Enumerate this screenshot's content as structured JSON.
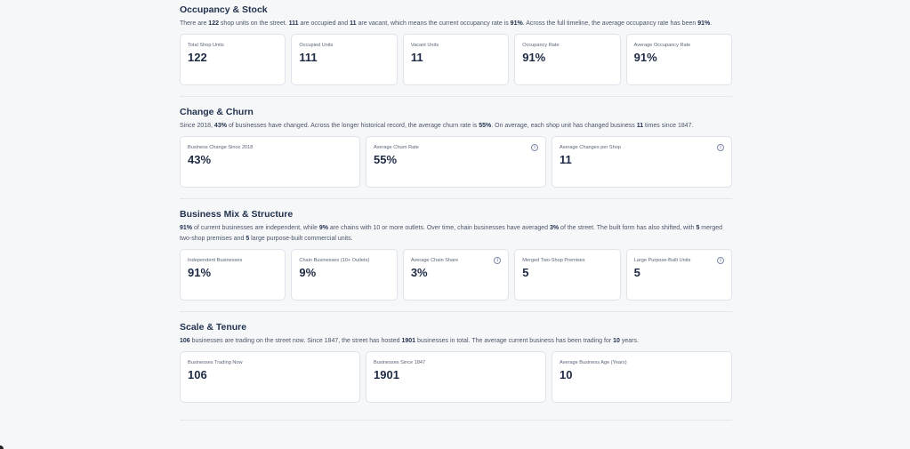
{
  "sections": [
    {
      "title": "Occupancy & Stock",
      "desc": [
        {
          "t": "There are "
        },
        {
          "t": "122",
          "b": true
        },
        {
          "t": " shop units on the street. "
        },
        {
          "t": "111",
          "b": true
        },
        {
          "t": " are occupied and "
        },
        {
          "t": "11",
          "b": true
        },
        {
          "t": " are vacant, which means the current occupancy rate is "
        },
        {
          "t": "91%",
          "b": true
        },
        {
          "t": ". Across the full timeline, the average occupancy rate has been "
        },
        {
          "t": "91%",
          "b": true
        },
        {
          "t": "."
        }
      ],
      "cards": [
        {
          "label": "Total Shop Units",
          "value": "122",
          "info": false
        },
        {
          "label": "Occupied Units",
          "value": "111",
          "info": false
        },
        {
          "label": "Vacant Units",
          "value": "11",
          "info": false
        },
        {
          "label": "Occupancy Rate",
          "value": "91%",
          "info": false
        },
        {
          "label": "Average Occupancy Rate",
          "value": "91%",
          "info": false
        }
      ]
    },
    {
      "title": "Change & Churn",
      "desc": [
        {
          "t": "Since 2018, "
        },
        {
          "t": "43%",
          "b": true
        },
        {
          "t": " of businesses have changed. Across the longer historical record, the average churn rate is "
        },
        {
          "t": "55%",
          "b": true
        },
        {
          "t": ". On average, each shop unit has changed business "
        },
        {
          "t": "11",
          "b": true
        },
        {
          "t": " times since 1847."
        }
      ],
      "cards": [
        {
          "label": "Business Change Since 2018",
          "value": "43%",
          "info": false
        },
        {
          "label": "Average Churn Rate",
          "value": "55%",
          "info": true
        },
        {
          "label": "Average Changes per Shop",
          "value": "11",
          "info": true
        }
      ]
    },
    {
      "title": "Business Mix & Structure",
      "desc": [
        {
          "t": "91%",
          "b": true
        },
        {
          "t": " of current businesses are independent, while "
        },
        {
          "t": "9%",
          "b": true
        },
        {
          "t": " are chains with 10 or more outlets. Over time, chain businesses have averaged "
        },
        {
          "t": "3%",
          "b": true
        },
        {
          "t": " of the street. The built form has also shifted, with "
        },
        {
          "t": "5",
          "b": true
        },
        {
          "t": " merged two-shop premises and "
        },
        {
          "t": "5",
          "b": true
        },
        {
          "t": " large purpose-built commercial units."
        }
      ],
      "cards": [
        {
          "label": "Independent Businesses",
          "value": "91%",
          "info": false
        },
        {
          "label": "Chain Businesses (10+ Outlets)",
          "value": "9%",
          "info": false
        },
        {
          "label": "Average Chain Share",
          "value": "3%",
          "info": true
        },
        {
          "label": "Merged Two-Shop Premises",
          "value": "5",
          "info": false
        },
        {
          "label": "Large Purpose-Built Units",
          "value": "5",
          "info": true
        }
      ]
    },
    {
      "title": "Scale & Tenure",
      "desc": [
        {
          "t": "106",
          "b": true
        },
        {
          "t": " businesses are trading on the street now. Since 1847, the street has hosted "
        },
        {
          "t": "1901",
          "b": true
        },
        {
          "t": " businesses in total. The average current business has been trading for "
        },
        {
          "t": "10",
          "b": true
        },
        {
          "t": " years."
        }
      ],
      "cards": [
        {
          "label": "Businesses Trading Now",
          "value": "106",
          "info": false
        },
        {
          "label": "Businesses Since 1847",
          "value": "1901",
          "info": false
        },
        {
          "label": "Average Business Age (Years)",
          "value": "10",
          "info": false
        }
      ]
    }
  ],
  "icons": {
    "info": "info-icon",
    "info_glyph": "i"
  },
  "colors": {
    "background": "#f6f7f9",
    "card": "#ffffff",
    "border": "#dfe3ea",
    "heading": "#22324f",
    "text": "#4a5568"
  }
}
